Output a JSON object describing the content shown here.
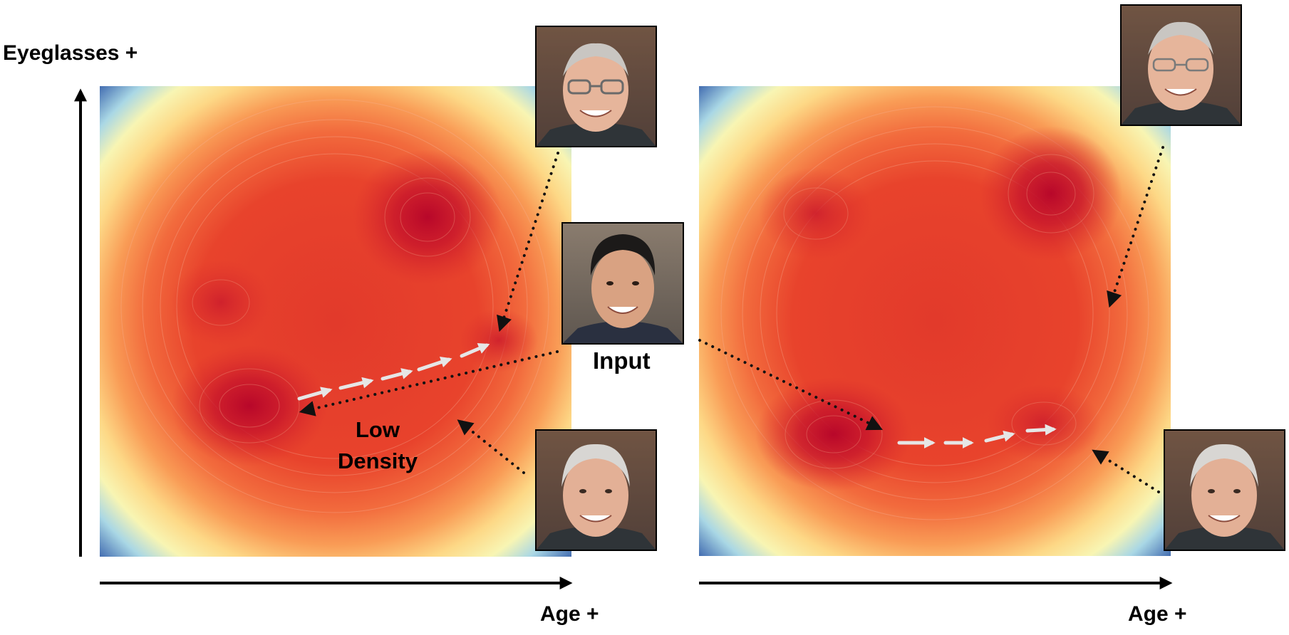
{
  "labels": {
    "y_axis": "Eyeglasses +",
    "x_axis_left": "Age +",
    "x_axis_right": "Age +",
    "input": "Input",
    "low_density_line1": "Low",
    "low_density_line2": "Density"
  },
  "panels": [
    {
      "name": "left-density-map",
      "peaks": [
        "upper-middle",
        "lower-left",
        "left",
        "middle-right"
      ]
    },
    {
      "name": "right-density-map",
      "peaks": [
        "upper-left",
        "upper-right",
        "lower-left",
        "lower-right"
      ]
    }
  ],
  "portraits": [
    {
      "name": "older-man-with-glasses"
    },
    {
      "name": "young-man-input"
    },
    {
      "name": "older-man-no-glasses"
    }
  ],
  "colors": {
    "density_high": "#b3002a",
    "density_mid": "#e8402b",
    "density_low": "#fdf3a8",
    "density_lowest": "#2b56a8",
    "arrow_white": "#e6e6e6",
    "dotted": "#111111"
  }
}
